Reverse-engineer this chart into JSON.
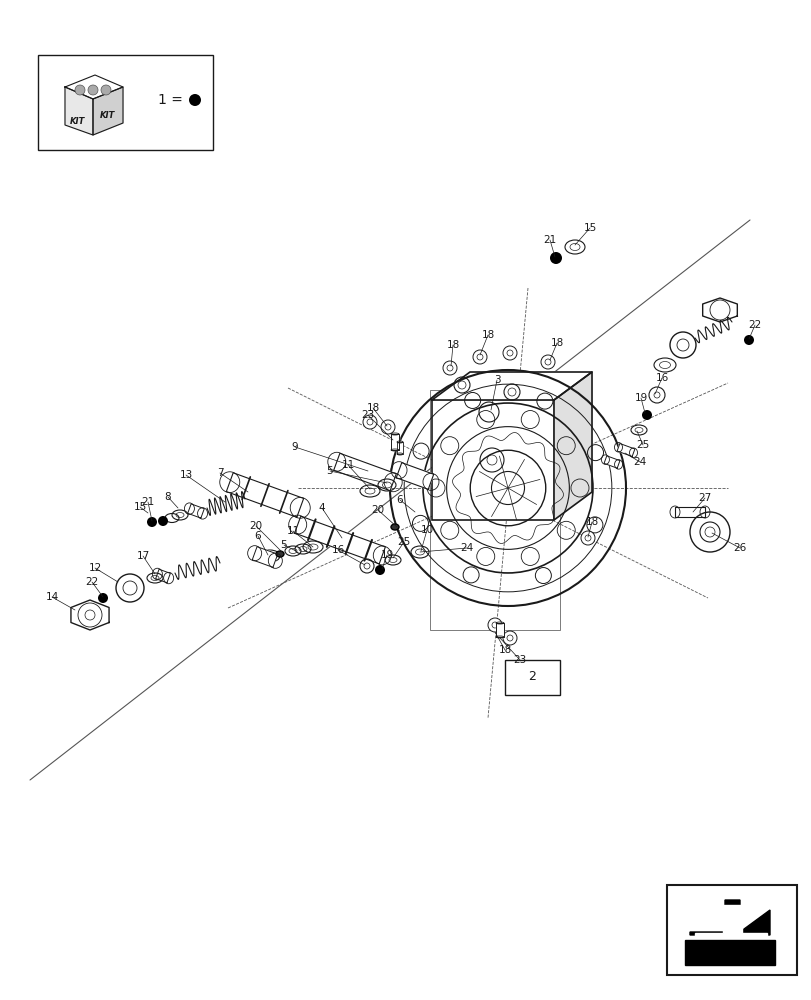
{
  "bg_color": "#ffffff",
  "fig_width": 8.12,
  "fig_height": 10.0,
  "dpi": 100,
  "line_color": "#1a1a1a",
  "gray_light": "#d8d8d8",
  "gray_mid": "#aaaaaa"
}
